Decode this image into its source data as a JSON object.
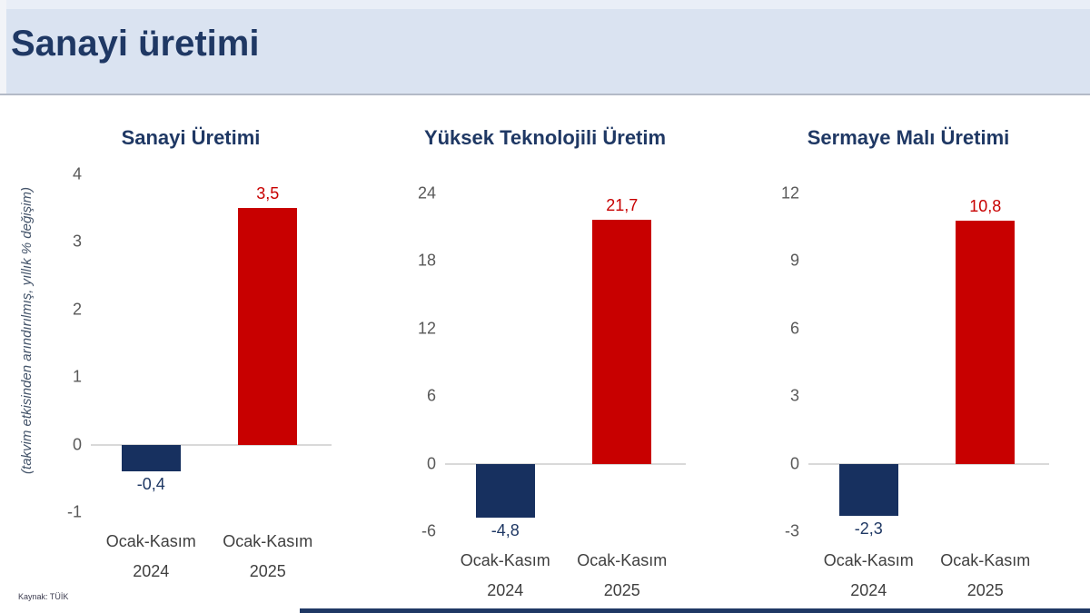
{
  "header": {
    "title": "Sanayi üretimi"
  },
  "y_axis_super_label": "(takvim etkisinden arındırılmış, yıllık % değişim)",
  "source": "Kaynak: TÜİK",
  "colors": {
    "header_bg": "#dae3f1",
    "title_navy": "#1f3864",
    "bar_negative": "#17305f",
    "bar_positive": "#c80000",
    "tick_gray": "#595959",
    "axis_line": "#d9d9d9"
  },
  "chart_data": [
    {
      "type": "bar",
      "title": "Sanayi Üretimi",
      "categories": [
        [
          "Ocak-Kasım",
          "2024"
        ],
        [
          "Ocak-Kasım",
          "2025"
        ]
      ],
      "values": [
        -0.4,
        3.5
      ],
      "value_labels": [
        "-0,4",
        "3,5"
      ],
      "bar_colors": [
        "#17305f",
        "#c80000"
      ],
      "label_colors": [
        "#1f3864",
        "#c80000"
      ],
      "yticks": [
        4,
        3,
        2,
        1,
        0,
        -1
      ],
      "ylim": [
        -1,
        4
      ],
      "xlabel": "",
      "ylabel": "",
      "grid": false,
      "legend": false
    },
    {
      "type": "bar",
      "title": "Yüksek Teknolojili Üretim",
      "categories": [
        [
          "Ocak-Kasım",
          "2024"
        ],
        [
          "Ocak-Kasım",
          "2025"
        ]
      ],
      "values": [
        -4.8,
        21.7
      ],
      "value_labels": [
        "-4,8",
        "21,7"
      ],
      "bar_colors": [
        "#17305f",
        "#c80000"
      ],
      "label_colors": [
        "#1f3864",
        "#c80000"
      ],
      "yticks": [
        24,
        18,
        12,
        6,
        0,
        -6
      ],
      "ylim": [
        -6,
        24
      ],
      "xlabel": "",
      "ylabel": "",
      "grid": false,
      "legend": false
    },
    {
      "type": "bar",
      "title": "Sermaye Malı Üretimi",
      "categories": [
        [
          "Ocak-Kasım",
          "2024"
        ],
        [
          "Ocak-Kasım",
          "2025"
        ]
      ],
      "values": [
        -2.3,
        10.8
      ],
      "value_labels": [
        "-2,3",
        "10,8"
      ],
      "bar_colors": [
        "#17305f",
        "#c80000"
      ],
      "label_colors": [
        "#1f3864",
        "#c80000"
      ],
      "yticks": [
        12,
        9,
        6,
        3,
        0,
        -3
      ],
      "ylim": [
        -3,
        12
      ],
      "xlabel": "",
      "ylabel": "",
      "grid": false,
      "legend": false
    }
  ]
}
